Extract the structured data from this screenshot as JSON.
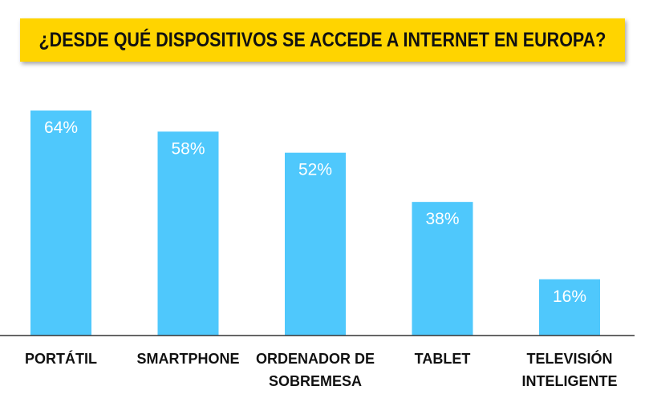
{
  "title": "¿DESDE QUÉ DISPOSITIVOS SE ACCEDE A INTERNET EN EUROPA?",
  "colors": {
    "banner": "#ffd400",
    "bar": "#4fc8fc",
    "axis": "#333333"
  },
  "chart_data": {
    "type": "bar",
    "categories": [
      [
        "PORTÁTIL"
      ],
      [
        "SMARTPHONE"
      ],
      [
        "ORDENADOR DE",
        "SOBREMESA"
      ],
      [
        "TABLET"
      ],
      [
        "TELEVISIÓN",
        "INTELIGENTE"
      ]
    ],
    "values": [
      64,
      58,
      52,
      38,
      16
    ],
    "value_labels": [
      "64%",
      "58%",
      "52%",
      "38%",
      "16%"
    ],
    "ylim": [
      0,
      64
    ],
    "grid": false,
    "legend": "none"
  }
}
